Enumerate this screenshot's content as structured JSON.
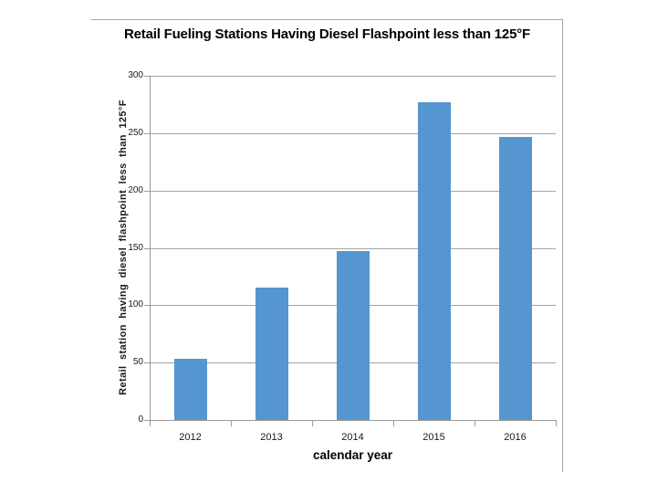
{
  "chart_data": {
    "type": "bar",
    "title": "Retail Fueling Stations Having Diesel Flashpoint less than 125°F",
    "xlabel": "calendar year",
    "ylabel": "Retail station having diesel flashpoint less than 125°F",
    "categories": [
      "2012",
      "2013",
      "2014",
      "2015",
      "2016"
    ],
    "values": [
      53,
      115,
      147,
      277,
      247
    ],
    "ylim": [
      0,
      300
    ],
    "yticks": [
      0,
      50,
      100,
      150,
      200,
      250,
      300
    ],
    "grid": "horizontal gridlines on",
    "legend": "none",
    "colors": {
      "bar_fill": "#5596d0",
      "gridline": "#a3a3a3",
      "axis_line": "#9a9a9a",
      "frame_border": "#a6a6a6",
      "text": "#1a1a1a",
      "background": "#ffffff"
    }
  }
}
